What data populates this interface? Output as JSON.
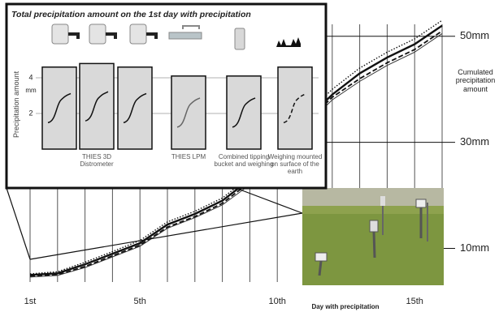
{
  "chart_data": [
    {
      "type": "line",
      "x": [
        1,
        2,
        3,
        4,
        5,
        6,
        7,
        8,
        9,
        10,
        11,
        12,
        13,
        14,
        15,
        16
      ],
      "xlim": [
        1,
        16
      ],
      "xticks": [
        {
          "value": 1,
          "label": "1st"
        },
        {
          "value": 5,
          "label": "5th"
        },
        {
          "value": 10,
          "label": "10th"
        },
        {
          "value": 15,
          "label": "15th"
        }
      ],
      "ylim": [
        0,
        55
      ],
      "yticks": [
        {
          "value": 10,
          "label": "10mm"
        },
        {
          "value": 30,
          "label": "30mm"
        },
        {
          "value": 50,
          "label": "50mm"
        }
      ],
      "x_label": "Day with precipitation",
      "y_label": "Cumulated precipitation amount",
      "grid": true,
      "series": [
        {
          "color": "#111111",
          "style": "solid",
          "values": [
            5,
            5.3,
            7,
            9,
            11,
            14.5,
            16.5,
            19,
            23,
            28,
            34,
            39,
            43,
            46,
            48.5,
            52
          ]
        },
        {
          "color": "#111111",
          "style": "dashed",
          "values": [
            4.8,
            5,
            6.6,
            8.6,
            10.6,
            14,
            16,
            18.5,
            22.5,
            27.5,
            33.5,
            38.5,
            42,
            45,
            47.5,
            51
          ]
        },
        {
          "color": "#111111",
          "style": "dotted",
          "values": [
            5.2,
            5.6,
            7.4,
            9.4,
            11.5,
            15,
            17,
            19.5,
            23.5,
            28.5,
            35,
            40,
            44,
            47,
            49.5,
            53
          ]
        },
        {
          "color": "#333333",
          "style": "thin",
          "values": [
            4.6,
            4.9,
            6.4,
            8.4,
            10.4,
            13.8,
            15.8,
            18.2,
            22,
            27,
            33,
            38,
            41.5,
            44.5,
            47,
            50.5
          ]
        }
      ]
    },
    {
      "type": "bar",
      "title": "Total precipitation amount on the 1st day with precipitation",
      "categories": [
        null,
        "THIES 3D Distrometer",
        null,
        "THIES LPM",
        "Combined tipping bucket and weighing",
        "Weighing mounted on surface of the earth"
      ],
      "values": [
        4.6,
        4.8,
        4.6,
        4.1,
        4.1,
        4.6
      ],
      "color": "#d9d9d9",
      "ylim": [
        0,
        5
      ],
      "yticks": [
        2,
        4
      ],
      "y_label": "Precipitation amount",
      "y_unit": "mm",
      "grid": true
    }
  ]
}
